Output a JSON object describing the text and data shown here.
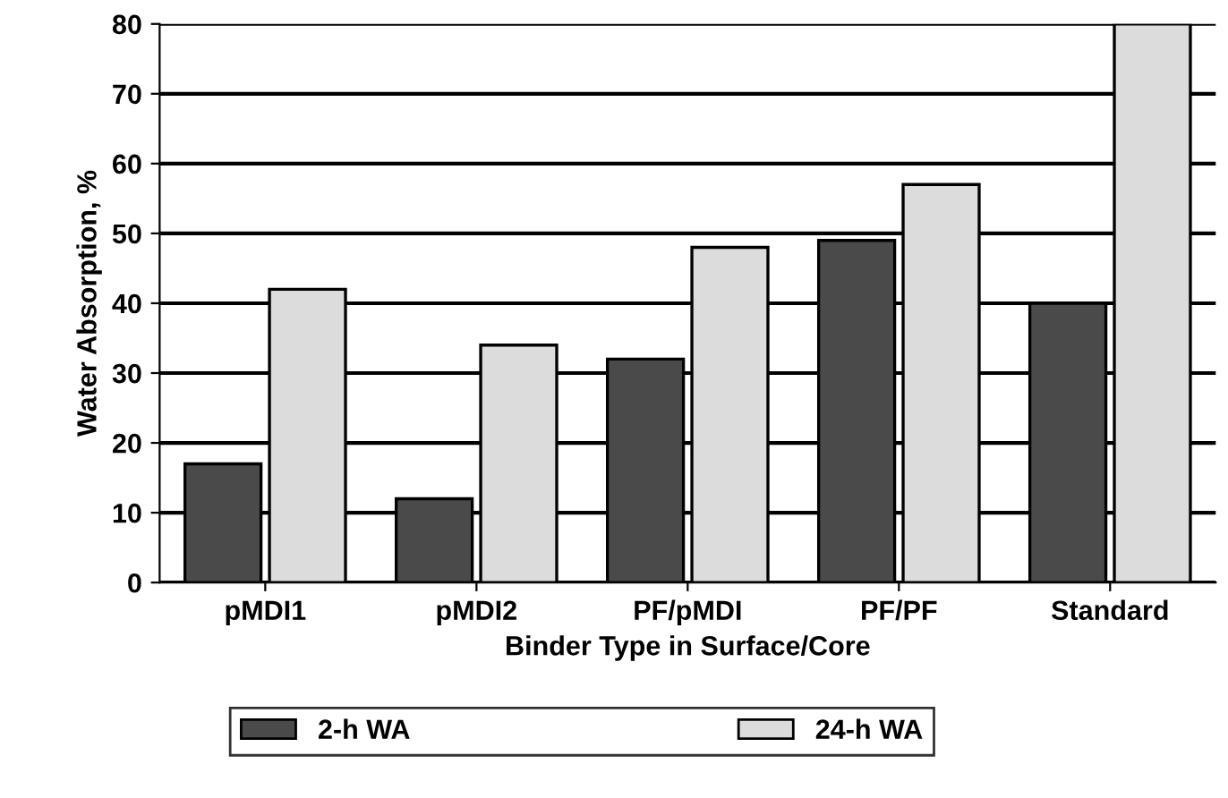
{
  "chart_data": {
    "type": "bar",
    "xlabel": "Binder Type in Surface/Core",
    "ylabel": "Water Absorption, %",
    "categories": [
      "pMDI1",
      "pMDI2",
      "PF/pMDI",
      "PF/PF",
      "Standard"
    ],
    "series": [
      {
        "name": "2-h WA",
        "color": "#4a4a4a",
        "values": [
          17,
          12,
          32,
          49,
          40
        ]
      },
      {
        "name": "24-h WA",
        "color": "#dcdcdc",
        "values": [
          42,
          34,
          48,
          57,
          80
        ]
      }
    ],
    "ylim": [
      0,
      80
    ],
    "yticks": [
      0,
      10,
      20,
      30,
      40,
      50,
      60,
      70,
      80
    ],
    "grid": "y",
    "legend": "bottom"
  }
}
